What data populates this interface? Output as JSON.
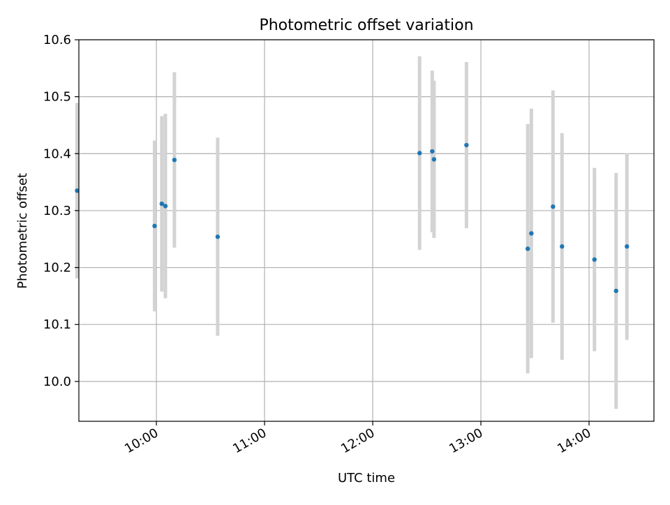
{
  "chart_data": {
    "type": "scatter",
    "title": "Photometric offset variation",
    "xlabel": "UTC time",
    "ylabel": "Photometric offset",
    "x_unit": "UTC time (HH:MM)",
    "xlim": [
      "09:17",
      "14:36"
    ],
    "ylim": [
      9.93,
      10.6
    ],
    "x_ticks": [
      "10:00",
      "11:00",
      "12:00",
      "13:00",
      "14:00"
    ],
    "y_ticks": [
      "10.0",
      "10.1",
      "10.2",
      "10.3",
      "10.4",
      "10.5",
      "10.6"
    ],
    "grid": true,
    "legend": "none",
    "colors": {
      "point": "#1f77b4",
      "errorbar": "#d3d3d3",
      "grid": "#b0b0b0"
    },
    "series": [
      {
        "points": [
          {
            "x": "09:16",
            "y": 10.335,
            "err": 0.154
          },
          {
            "x": "09:59",
            "y": 10.273,
            "err": 0.15
          },
          {
            "x": "10:03",
            "y": 10.312,
            "err": 0.154
          },
          {
            "x": "10:05",
            "y": 10.308,
            "err": 0.162
          },
          {
            "x": "10:10",
            "y": 10.389,
            "err": 0.154
          },
          {
            "x": "10:34",
            "y": 10.254,
            "err": 0.174
          },
          {
            "x": "12:26",
            "y": 10.401,
            "err": 0.17
          },
          {
            "x": "12:33",
            "y": 10.404,
            "err": 0.142
          },
          {
            "x": "12:34",
            "y": 10.39,
            "err": 0.138
          },
          {
            "x": "12:52",
            "y": 10.415,
            "err": 0.146
          },
          {
            "x": "13:26",
            "y": 10.233,
            "err": 0.219
          },
          {
            "x": "13:28",
            "y": 10.26,
            "err": 0.219
          },
          {
            "x": "13:40",
            "y": 10.307,
            "err": 0.204
          },
          {
            "x": "13:45",
            "y": 10.237,
            "err": 0.199
          },
          {
            "x": "14:03",
            "y": 10.214,
            "err": 0.161
          },
          {
            "x": "14:15",
            "y": 10.159,
            "err": 0.207
          },
          {
            "x": "14:21",
            "y": 10.237,
            "err": 0.164
          }
        ]
      }
    ]
  }
}
